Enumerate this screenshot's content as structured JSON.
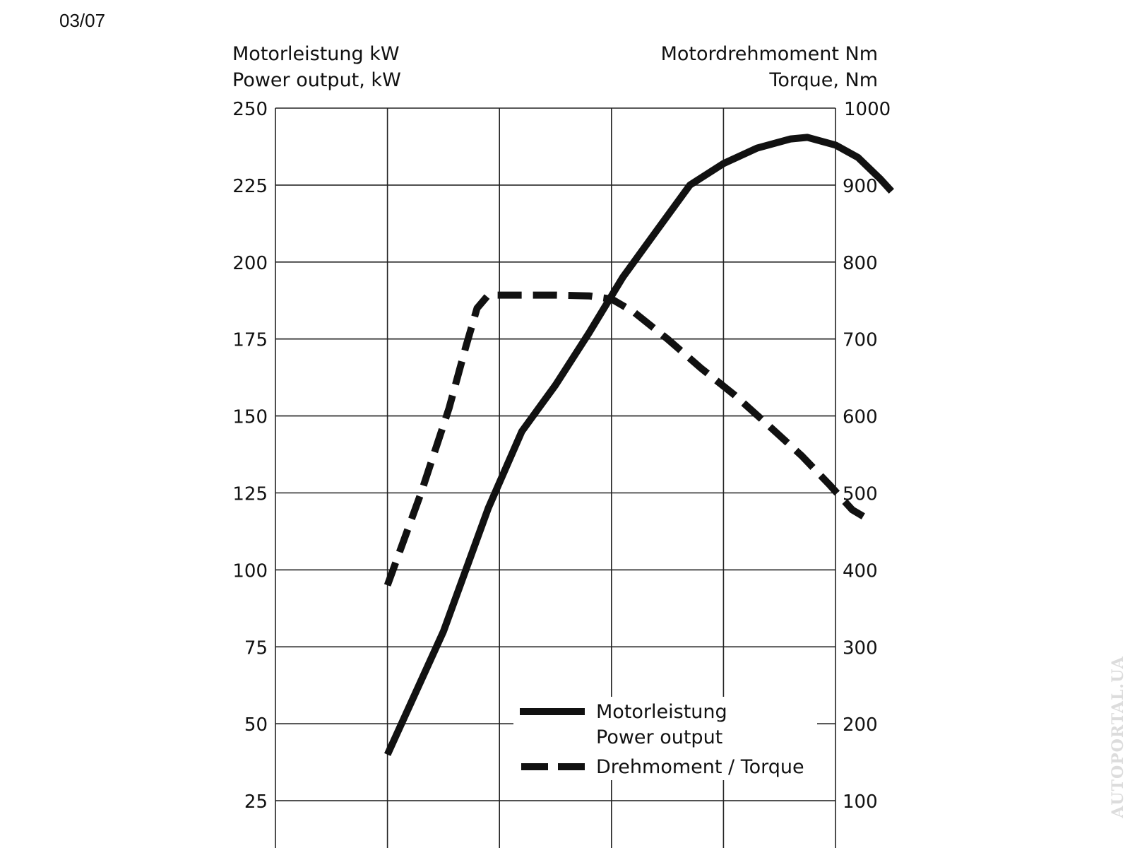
{
  "date_stamp": "03/07",
  "watermark": "AUTOPORTAL.UA",
  "chart_data": {
    "type": "line",
    "left_axis": {
      "label_line1": "Motorleistung kW",
      "label_line2": "Power output, kW",
      "ylim": [
        0,
        250
      ],
      "ticks": [
        "250",
        "225",
        "200",
        "175",
        "150",
        "125",
        "100",
        "75",
        "50",
        "25"
      ]
    },
    "right_axis": {
      "label_line1": "Motordrehmoment Nm",
      "label_line2": "Torque, Nm",
      "ylim": [
        0,
        1000
      ],
      "ticks": [
        "1000",
        "900",
        "800",
        "700",
        "600",
        "500",
        "400",
        "300",
        "200",
        "100"
      ]
    },
    "x_grid_lines": 5,
    "grid": true,
    "legend": {
      "placement": "bottom-right",
      "power_line1": "Motorleistung",
      "power_line2": "Power output",
      "torque": "Drehmoment / Torque"
    },
    "series": [
      {
        "key": "power",
        "name": "Motorleistung / Power output",
        "axis": "left",
        "style": "solid",
        "color": "#111111",
        "points": [
          [
            1.0,
            40
          ],
          [
            1.5,
            80
          ],
          [
            1.9,
            120
          ],
          [
            2.2,
            145
          ],
          [
            2.5,
            160
          ],
          [
            2.8,
            177
          ],
          [
            3.1,
            195
          ],
          [
            3.4,
            210
          ],
          [
            3.7,
            225
          ],
          [
            4.0,
            232
          ],
          [
            4.3,
            237
          ],
          [
            4.6,
            240
          ],
          [
            4.75,
            240.5
          ],
          [
            5.0,
            238
          ],
          [
            5.2,
            234
          ],
          [
            5.4,
            227
          ],
          [
            5.5,
            223
          ]
        ]
      },
      {
        "key": "torque",
        "name": "Drehmoment / Torque",
        "axis": "right",
        "style": "dashed",
        "color": "#111111",
        "points": [
          [
            1.0,
            380
          ],
          [
            1.3,
            500
          ],
          [
            1.55,
            610
          ],
          [
            1.7,
            690
          ],
          [
            1.8,
            740
          ],
          [
            1.9,
            757
          ],
          [
            2.5,
            757
          ],
          [
            2.8,
            756
          ],
          [
            3.0,
            752
          ],
          [
            3.2,
            735
          ],
          [
            3.5,
            700
          ],
          [
            3.8,
            662
          ],
          [
            4.1,
            627
          ],
          [
            4.4,
            588
          ],
          [
            4.7,
            548
          ],
          [
            4.95,
            510
          ],
          [
            5.15,
            478
          ],
          [
            5.3,
            465
          ]
        ]
      }
    ]
  }
}
